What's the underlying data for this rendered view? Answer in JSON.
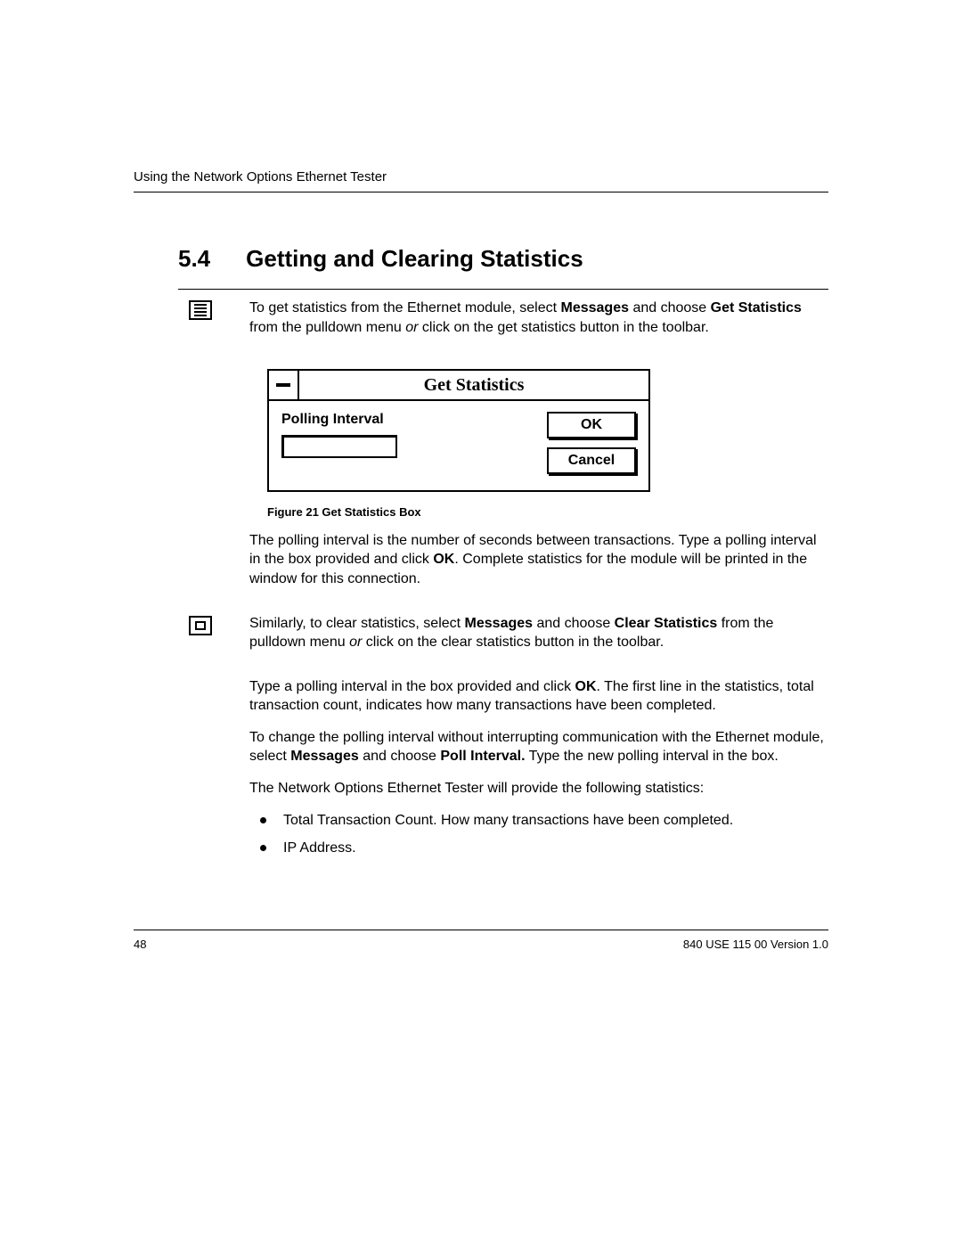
{
  "header": {
    "running": "Using the Network Options Ethernet Tester"
  },
  "section": {
    "number": "5.4",
    "title": "Getting and Clearing Statistics"
  },
  "para1": {
    "pre": "To get statistics from the Ethernet module, select ",
    "b1": "Messages",
    "mid1": " and choose ",
    "b2": "Get Statistics",
    "mid2": " from the pulldown menu ",
    "i1": "or",
    "post": " click on the get statistics button in the toolbar."
  },
  "dialog": {
    "title": "Get Statistics",
    "label": "Polling Interval",
    "ok": "OK",
    "cancel": "Cancel"
  },
  "figcap": "Figure 21  Get Statistics Box",
  "para2": {
    "pre": "The polling interval is the number of seconds between transactions. Type a polling interval in the box provided and click ",
    "b1": "OK",
    "post": ". Complete statistics for the module will be printed in the window for this connection."
  },
  "para3": {
    "pre": "Similarly, to clear statistics, select ",
    "b1": "Messages",
    "mid1": " and choose ",
    "b2": "Clear Statistics",
    "mid2": " from the pulldown menu ",
    "i1": "or",
    "post": " click on the clear statistics button in the toolbar."
  },
  "para4": {
    "pre": "Type a polling interval in the box provided and click ",
    "b1": "OK",
    "post": ". The first line in the statistics, total transaction count, indicates how many transactions have been completed."
  },
  "para5": {
    "pre": "To change the polling interval without interrupting communication with the Ethernet module, select ",
    "b1": "Messages",
    "mid1": " and choose ",
    "b2": "Poll Interval.",
    "post": " Type the new polling interval in the box."
  },
  "para6": "The Network Options Ethernet Tester will provide the following statistics:",
  "bullets": [
    "Total Transaction Count. How many transactions have been completed.",
    "IP Address."
  ],
  "footer": {
    "page": "48",
    "docid": "840 USE 115 00  Version 1.0"
  }
}
